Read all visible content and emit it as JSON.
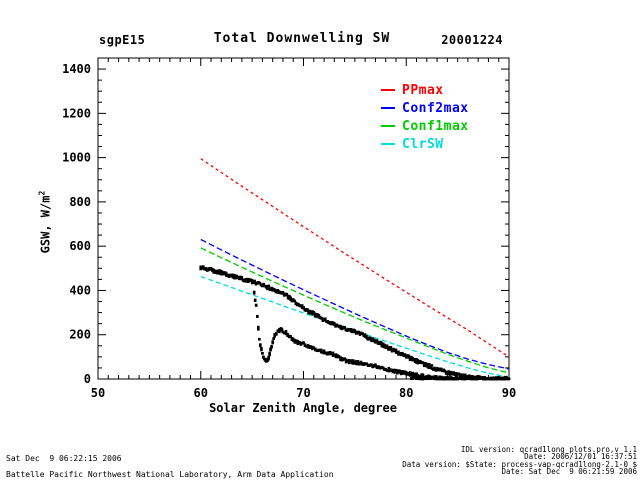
{
  "header": {
    "site_label": "sgpE15",
    "title": "Total Downwelling SW",
    "date_label": "20001224"
  },
  "chart_data": {
    "type": "line+scatter",
    "title": "Total Downwelling SW",
    "xlabel": "Solar Zenith Angle, degree",
    "ylabel": "GSW, W/m",
    "ylabel_sup": "2",
    "xlim": [
      50,
      90
    ],
    "ylim": [
      0,
      1450
    ],
    "x_major_ticks": [
      50,
      60,
      70,
      80,
      90
    ],
    "x_minor_step": 1,
    "y_major_ticks": [
      0,
      200,
      400,
      600,
      800,
      1000,
      1200,
      1400
    ],
    "y_minor_step": 50,
    "grid": false,
    "legend_position": "upper-right-inside",
    "x_series": [
      60,
      62,
      64,
      66,
      68,
      70,
      72,
      74,
      76,
      78,
      80,
      82,
      84,
      86,
      88,
      90
    ],
    "series": [
      {
        "name": "PPmax",
        "color": "#ff0000",
        "linestyle": "dashed",
        "dash": "3 3",
        "values": [
          995,
          933,
          871,
          810,
          749,
          688,
          628,
          568,
          509,
          450,
          392,
          334,
          277,
          221,
          160,
          100
        ]
      },
      {
        "name": "Conf2max",
        "color": "#0000ff",
        "linestyle": "dashed",
        "dash": "6 3",
        "values": [
          630,
          583,
          537,
          492,
          447,
          403,
          360,
          317,
          275,
          234,
          194,
          156,
          120,
          90,
          65,
          45
        ]
      },
      {
        "name": "Conf1max",
        "color": "#00cc00",
        "linestyle": "dashed",
        "dash": "6 3",
        "values": [
          592,
          548,
          505,
          462,
          420,
          379,
          338,
          298,
          259,
          222,
          185,
          148,
          112,
          80,
          50,
          28
        ]
      },
      {
        "name": "ClrSW",
        "color": "#00dddd",
        "linestyle": "dashed",
        "dash": "5 3",
        "values": [
          463,
          430,
          397,
          364,
          331,
          298,
          266,
          234,
          202,
          170,
          139,
          108,
          78,
          50,
          26,
          8
        ]
      }
    ],
    "scatter": [
      {
        "name": "measured-gsw-branch-1",
        "color": "#000000",
        "marker": "filled-square",
        "jitter": 16,
        "points": [
          [
            60,
            505
          ],
          [
            60.5,
            498
          ],
          [
            61,
            493
          ],
          [
            61.5,
            487
          ],
          [
            62,
            480
          ],
          [
            62.5,
            473
          ],
          [
            63,
            467
          ],
          [
            63.5,
            460
          ],
          [
            64,
            453
          ],
          [
            64.5,
            446
          ],
          [
            65,
            439
          ],
          [
            65.5,
            432
          ],
          [
            66,
            424
          ],
          [
            66.5,
            415
          ],
          [
            67,
            406
          ],
          [
            67.5,
            397
          ],
          [
            68,
            388
          ],
          [
            68.5,
            372
          ],
          [
            69,
            352
          ],
          [
            69.5,
            336
          ],
          [
            70,
            322
          ],
          [
            70.5,
            306
          ],
          [
            71,
            294
          ],
          [
            71.5,
            282
          ],
          [
            72,
            268
          ],
          [
            72.5,
            256
          ],
          [
            73,
            246
          ],
          [
            73.5,
            237
          ],
          [
            74,
            229
          ],
          [
            74.5,
            221
          ],
          [
            75,
            214
          ],
          [
            75.5,
            204
          ],
          [
            76,
            193
          ],
          [
            76.5,
            182
          ],
          [
            77,
            170
          ],
          [
            77.5,
            159
          ],
          [
            78,
            148
          ],
          [
            78.5,
            136
          ],
          [
            79,
            124
          ],
          [
            79.5,
            113
          ],
          [
            80,
            102
          ],
          [
            80.5,
            92
          ],
          [
            81,
            82
          ],
          [
            81.5,
            72
          ],
          [
            82,
            63
          ],
          [
            82.5,
            53
          ],
          [
            83,
            45
          ],
          [
            83.5,
            37
          ],
          [
            84,
            29
          ],
          [
            84.5,
            23
          ],
          [
            85,
            17
          ],
          [
            85.5,
            13
          ],
          [
            86,
            10
          ],
          [
            86.5,
            7
          ],
          [
            87,
            5
          ],
          [
            87.5,
            4
          ],
          [
            88,
            3
          ],
          [
            88.5,
            2
          ],
          [
            89,
            1
          ],
          [
            89.5,
            1
          ],
          [
            90,
            0
          ]
        ]
      },
      {
        "name": "measured-gsw-branch-2",
        "color": "#000000",
        "marker": "filled-square",
        "jitter": 14,
        "points": [
          [
            65.2,
            390
          ],
          [
            65.4,
            330
          ],
          [
            65.5,
            280
          ],
          [
            65.6,
            230
          ],
          [
            65.7,
            185
          ],
          [
            65.8,
            150
          ],
          [
            66,
            115
          ],
          [
            66.2,
            88
          ],
          [
            66.4,
            80
          ],
          [
            66.6,
            95
          ],
          [
            66.8,
            130
          ],
          [
            67,
            165
          ],
          [
            67.2,
            195
          ],
          [
            67.5,
            215
          ],
          [
            67.8,
            222
          ],
          [
            68,
            218
          ],
          [
            68.3,
            210
          ],
          [
            68.6,
            195
          ],
          [
            69,
            175
          ],
          [
            69.3,
            168
          ],
          [
            69.6,
            163
          ],
          [
            70,
            158
          ],
          [
            70.3,
            152
          ],
          [
            70.6,
            147
          ],
          [
            71,
            140
          ],
          [
            71.3,
            133
          ],
          [
            71.6,
            127
          ],
          [
            72,
            122
          ],
          [
            72.3,
            118
          ],
          [
            72.6,
            114
          ],
          [
            73,
            110
          ],
          [
            73.3,
            100
          ],
          [
            73.6,
            92
          ],
          [
            74,
            85
          ],
          [
            74.3,
            80
          ],
          [
            74.6,
            77
          ],
          [
            75,
            76
          ],
          [
            75.3,
            74
          ],
          [
            75.6,
            72
          ],
          [
            76,
            70
          ],
          [
            76.3,
            66
          ],
          [
            76.6,
            62
          ],
          [
            77,
            58
          ],
          [
            77.3,
            54
          ],
          [
            77.6,
            50
          ],
          [
            78,
            46
          ],
          [
            78.3,
            42
          ],
          [
            78.6,
            38
          ],
          [
            79,
            34
          ],
          [
            79.5,
            30
          ],
          [
            80,
            26
          ],
          [
            80.5,
            22
          ],
          [
            81,
            18
          ],
          [
            81.5,
            14
          ],
          [
            82,
            10
          ],
          [
            82.5,
            7
          ],
          [
            83,
            5
          ],
          [
            83.5,
            3
          ],
          [
            84,
            2
          ],
          [
            84.5,
            1
          ],
          [
            85,
            0
          ]
        ]
      },
      {
        "name": "measured-gsw-near-zero",
        "color": "#000000",
        "marker": "filled-square",
        "jitter": 6,
        "points": [
          [
            80.5,
            3
          ],
          [
            81,
            3
          ],
          [
            81.5,
            2
          ],
          [
            82,
            3
          ],
          [
            82.5,
            2
          ],
          [
            83,
            3
          ],
          [
            83.5,
            2
          ],
          [
            84,
            3
          ],
          [
            84.5,
            2
          ],
          [
            85,
            3
          ],
          [
            85.5,
            2
          ],
          [
            86,
            3
          ],
          [
            86.5,
            2
          ],
          [
            87,
            3
          ],
          [
            87.5,
            2
          ],
          [
            88,
            3
          ],
          [
            88.5,
            2
          ],
          [
            89,
            2
          ],
          [
            89.5,
            2
          ],
          [
            90,
            2
          ]
        ]
      }
    ]
  },
  "legend": {
    "items": [
      {
        "label": "PPmax",
        "color": "#ff0000"
      },
      {
        "label": "Conf2max",
        "color": "#0000ff"
      },
      {
        "label": "Conf1max",
        "color": "#00cc00"
      },
      {
        "label": "ClrSW",
        "color": "#00dddd"
      }
    ]
  },
  "footer": {
    "left_lines": [
      "Sat Dec  9 06:22:15 2006",
      "Battelle Pacific Northwest National Laboratory, Arm Data Application"
    ],
    "right_lines": [
      "IDL version: qcrad1long_plots.pro,v 1.1",
      "Date: 2006/12/01 16:37:51",
      "Data version: $State: process-vap-qcrad1long-2.1-0 $",
      "Date: Sat Dec  9 06:21:59 2006"
    ]
  }
}
